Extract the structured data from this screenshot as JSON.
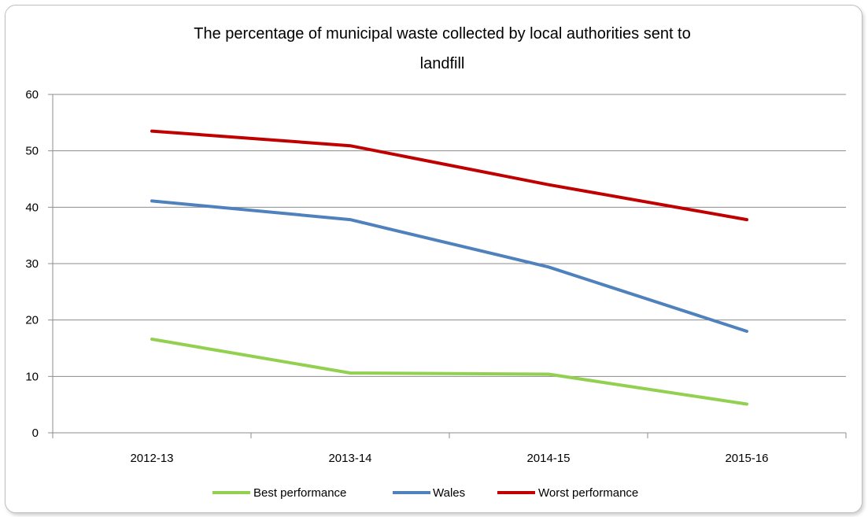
{
  "chart_data": {
    "type": "line",
    "title_lines": [
      "The percentage of municipal waste collected by local authorities sent to",
      "landfill"
    ],
    "xlabel": "",
    "ylabel": "",
    "categories": [
      "2012-13",
      "2013-14",
      "2014-15",
      "2015-16"
    ],
    "ylim": [
      0,
      60
    ],
    "yticks": [
      "0",
      "10",
      "20",
      "30",
      "40",
      "50",
      "60"
    ],
    "grid": true,
    "legend_position": "bottom",
    "series": [
      {
        "name": "Best performance",
        "color": "#92d050",
        "values": [
          16.6,
          10.6,
          10.4,
          5.1
        ]
      },
      {
        "name": "Wales",
        "color": "#4f81bd",
        "values": [
          41.1,
          37.8,
          29.4,
          18.0
        ]
      },
      {
        "name": "Worst performance",
        "color": "#c00000",
        "values": [
          53.5,
          50.9,
          44.0,
          37.8
        ]
      }
    ]
  }
}
